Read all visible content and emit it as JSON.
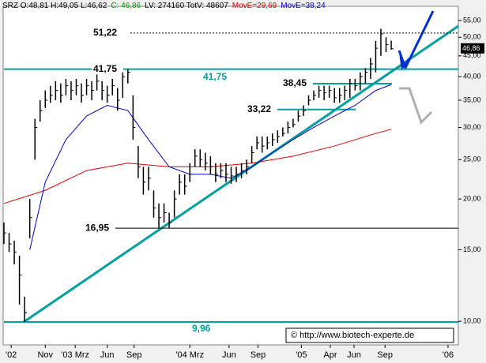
{
  "chart_data": {
    "type": "ohlc",
    "header": [
      "SRZ O:48,81 H:49,05 L:46,62",
      "C: 46,86",
      "LV: 274160 TotV: 48607"
    ],
    "header_colors": [
      "#000000",
      "#00a000",
      "#000000"
    ],
    "log_scale": true,
    "ylim": [
      8.75,
      59.6
    ],
    "yticks": [
      {
        "value": 10,
        "label": "10,00"
      },
      {
        "value": 15,
        "label": "15,00"
      },
      {
        "value": 20,
        "label": "20,00"
      },
      {
        "value": 25,
        "label": "25,00"
      },
      {
        "value": 30,
        "label": "30,00"
      },
      {
        "value": 35,
        "label": "35,00"
      },
      {
        "value": 40,
        "label": "40,00"
      },
      {
        "value": 45,
        "label": "45,00"
      },
      {
        "value": 50,
        "label": "50,00"
      },
      {
        "value": 55,
        "label": "55,00"
      }
    ],
    "xlim": [
      0,
      44
    ],
    "xticks": [
      {
        "value": 0.7,
        "label": "'02"
      },
      {
        "value": 4,
        "label": "Nov"
      },
      {
        "value": 6.9,
        "label": "'03 Mrz"
      },
      {
        "value": 10,
        "label": "Jun"
      },
      {
        "value": 12.6,
        "label": "Sep"
      },
      {
        "value": 18,
        "label": "'04 Mrz"
      },
      {
        "value": 21.8,
        "label": "Jun"
      },
      {
        "value": 24.6,
        "label": "Sep"
      },
      {
        "value": 28.8,
        "label": "'05"
      },
      {
        "value": 31.6,
        "label": "Apr"
      },
      {
        "value": 33.9,
        "label": "Jun"
      },
      {
        "value": 36.9,
        "label": "Sep"
      },
      {
        "value": 43,
        "label": "'06"
      }
    ],
    "bar_color": "#000000",
    "x": [
      0,
      0.5,
      1,
      1.5,
      2,
      2.5,
      3,
      3.5,
      4,
      4.5,
      5,
      5.5,
      6,
      6.5,
      7,
      7.5,
      8,
      8.5,
      9,
      9.5,
      10,
      10.5,
      11,
      11.5,
      12,
      12.5,
      13,
      13.5,
      14,
      14.5,
      15,
      15.5,
      16,
      16.5,
      17,
      17.5,
      18,
      18.5,
      19,
      19.5,
      20,
      20.5,
      21,
      21.5,
      22,
      22.5,
      23,
      23.5,
      24,
      24.5,
      25,
      25.5,
      26,
      26.5,
      27,
      27.5,
      28,
      28.5,
      29,
      29.5,
      30,
      30.5,
      31,
      31.5,
      32,
      32.5,
      33,
      33.5,
      34,
      34.5,
      35,
      35.5,
      36,
      36.5,
      37,
      37.5
    ],
    "high": [
      17.5,
      16.5,
      15.8,
      14.5,
      11.5,
      20,
      31.5,
      35,
      37,
      38,
      39,
      38.5,
      39.5,
      39,
      39.5,
      38.5,
      39.5,
      39,
      40.5,
      39,
      38,
      39.5,
      37.5,
      41,
      41.75,
      36,
      27,
      24,
      24,
      21,
      19.5,
      19.5,
      18.5,
      21,
      23,
      23,
      24.5,
      26.5,
      26.5,
      26,
      25.5,
      24.5,
      24.5,
      24.5,
      24,
      24,
      24.5,
      25,
      27,
      28.5,
      28.5,
      28.5,
      29,
      29.5,
      30,
      31,
      31.5,
      33,
      34,
      36,
      37,
      38,
      38,
      38,
      37.5,
      37.5,
      38,
      39.5,
      39.5,
      41,
      42,
      44.5,
      49,
      52.5,
      50,
      49.05
    ],
    "low": [
      15.5,
      14.8,
      13.8,
      11,
      9.96,
      16,
      25,
      31,
      33.5,
      34.5,
      35,
      34.5,
      36,
      35,
      36,
      34.5,
      36,
      35,
      37,
      35,
      34.5,
      36,
      33,
      35.5,
      38.5,
      28,
      22.5,
      20.5,
      21,
      18,
      17,
      17.5,
      16.95,
      18,
      20.5,
      20.5,
      22,
      24,
      24,
      23.5,
      23,
      22,
      22.5,
      22,
      21.8,
      22,
      22.5,
      23,
      24.5,
      26.5,
      26,
      26.5,
      27,
      27.5,
      28.5,
      29,
      30,
      31,
      32,
      34,
      35,
      35.5,
      35,
      35.5,
      34.5,
      34.5,
      35,
      35.5,
      37,
      37,
      38.5,
      39.5,
      41,
      45,
      46,
      46.62
    ],
    "close": [
      16.5,
      15.5,
      14.8,
      13,
      10.5,
      18,
      30,
      33,
      35,
      36,
      37,
      36,
      38,
      37,
      38,
      36,
      38,
      37,
      39,
      37,
      36,
      38,
      35,
      40,
      41,
      30,
      24,
      22,
      22.5,
      19,
      18,
      18.5,
      17.5,
      20,
      22,
      21.5,
      23,
      25.5,
      25,
      24.5,
      24,
      23,
      23.5,
      23,
      22.8,
      23,
      23.5,
      24,
      26,
      27.5,
      27,
      27.5,
      28,
      28.5,
      29,
      30,
      30.5,
      32,
      33,
      35,
      36,
      37,
      36.5,
      37,
      35.5,
      36,
      37,
      38.5,
      38,
      40,
      41,
      43,
      47,
      51,
      48,
      46.86
    ],
    "series": [
      {
        "name": "MovE=29,69",
        "color": "#e00000",
        "x": [
          0,
          4,
          8,
          12,
          16,
          20,
          24,
          28,
          32,
          36,
          37.5
        ],
        "values": [
          19.5,
          21,
          23.5,
          24.5,
          24,
          24,
          24.5,
          25.5,
          27,
          29,
          29.69
        ]
      },
      {
        "name": "MovE=38,24",
        "color": "#0000c0",
        "x": [
          2.5,
          4,
          6,
          8,
          10,
          12,
          14,
          16,
          18,
          20,
          22,
          24,
          26,
          28,
          30,
          32,
          34,
          36,
          37.5
        ],
        "values": [
          15,
          22,
          28,
          32,
          34,
          33,
          28,
          24,
          23,
          23,
          22.5,
          24,
          26,
          28,
          30,
          32,
          34,
          37,
          38.24
        ]
      }
    ],
    "levels": [
      {
        "value": 51.22,
        "label": "51,22",
        "color": "#000000"
      },
      {
        "value": 41.75,
        "label": "41,75",
        "color": "#00a0a0"
      },
      {
        "value": 38.45,
        "label": "38,45",
        "color": "#00a0a0"
      },
      {
        "value": 33.22,
        "label": "33,22",
        "color": "#00a0a0"
      },
      {
        "value": 16.95,
        "label": "16,95",
        "color": "#000000"
      },
      {
        "value": 9.96,
        "label": "9,96",
        "color": "#00a0a0"
      }
    ],
    "last_price": {
      "value": 46.86,
      "label": "46,86"
    },
    "copyright": "© http://www.biotech-experte.de"
  }
}
